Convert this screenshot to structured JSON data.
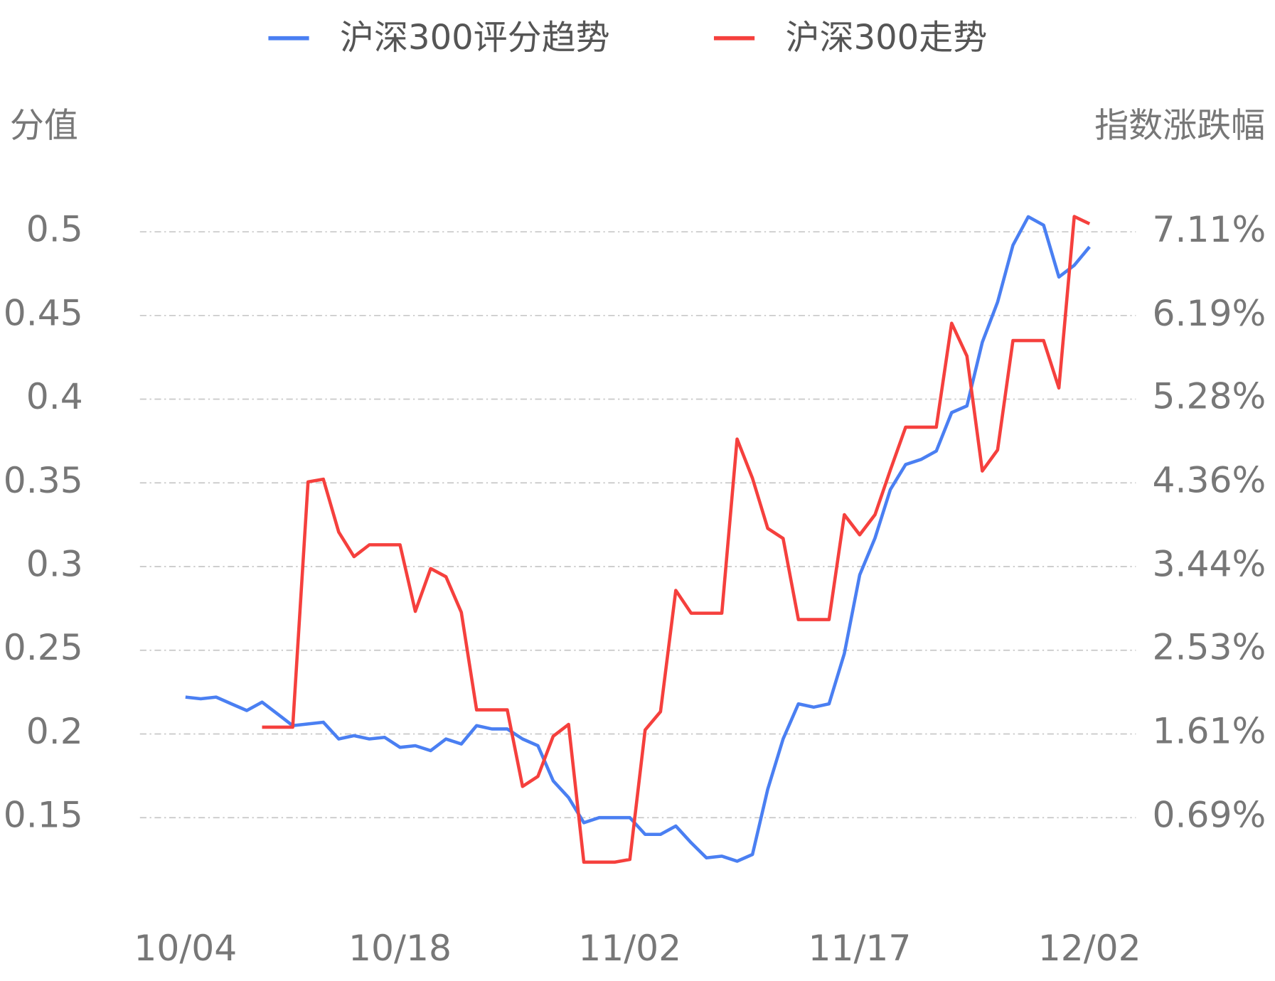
{
  "chart_data": {
    "type": "line",
    "ylabel": "分值",
    "y2label": "指数涨跌幅",
    "categories": [
      "10/04",
      null,
      null,
      null,
      null,
      null,
      null,
      null,
      null,
      null,
      null,
      null,
      null,
      null,
      "10/18",
      null,
      null,
      null,
      null,
      null,
      null,
      null,
      null,
      null,
      null,
      null,
      null,
      null,
      null,
      "11/02",
      null,
      null,
      null,
      null,
      null,
      null,
      null,
      null,
      null,
      null,
      null,
      null,
      null,
      null,
      "11/17",
      null,
      null,
      null,
      null,
      null,
      null,
      null,
      null,
      null,
      null,
      null,
      null,
      null,
      null,
      "12/02"
    ],
    "series": [
      {
        "name": "沪深300评分趋势",
        "color": "#4a7ff2",
        "values": [
          0.222,
          0.221,
          0.222,
          0.218,
          0.214,
          0.219,
          0.212,
          0.205,
          0.206,
          0.207,
          0.197,
          0.199,
          0.197,
          0.198,
          0.192,
          0.193,
          0.19,
          0.197,
          0.194,
          0.205,
          0.203,
          0.203,
          0.197,
          0.193,
          0.172,
          0.162,
          0.147,
          0.15,
          0.15,
          0.15,
          0.14,
          0.14,
          0.145,
          0.135,
          0.126,
          0.127,
          0.124,
          0.128,
          0.167,
          0.197,
          0.218,
          0.216,
          0.218,
          0.248,
          0.295,
          0.317,
          0.346,
          0.361,
          0.364,
          0.369,
          0.392,
          0.396,
          0.434,
          0.458,
          0.492,
          0.509,
          0.504,
          0.473,
          0.48,
          0.491
        ]
      },
      {
        "name": "沪深300走势",
        "color": "#f5403d",
        "axis": "y2",
        "values": [
          null,
          null,
          null,
          null,
          null,
          1.68,
          1.68,
          1.68,
          4.37,
          4.4,
          3.82,
          3.55,
          3.68,
          3.68,
          3.68,
          2.95,
          3.42,
          3.33,
          2.94,
          1.87,
          1.87,
          1.87,
          1.03,
          1.14,
          1.58,
          1.71,
          0.2,
          0.2,
          0.2,
          0.23,
          1.65,
          1.85,
          3.18,
          2.93,
          2.93,
          2.93,
          4.84,
          4.41,
          3.86,
          3.75,
          2.86,
          2.86,
          2.86,
          4.01,
          3.79,
          4.01,
          4.5,
          4.97,
          4.97,
          4.97,
          6.11,
          5.75,
          4.49,
          4.72,
          5.92,
          5.92,
          5.92,
          5.4,
          7.28,
          7.2
        ]
      }
    ],
    "ylim": [
      0.1,
      0.52
    ],
    "yticks": [
      0.15,
      0.2,
      0.25,
      0.3,
      0.35,
      0.4,
      0.45,
      0.5
    ],
    "y2lim": [
      -0.23,
      7.48
    ],
    "y2ticks": [
      {
        "value": 0.69,
        "label": "0.69%"
      },
      {
        "value": 1.61,
        "label": "1.61%"
      },
      {
        "value": 2.53,
        "label": "2.53%"
      },
      {
        "value": 3.44,
        "label": "3.44%"
      },
      {
        "value": 4.36,
        "label": "4.36%"
      },
      {
        "value": 5.28,
        "label": "5.28%"
      },
      {
        "value": 6.19,
        "label": "6.19%"
      },
      {
        "value": 7.11,
        "label": "7.11%"
      }
    ],
    "grid": true
  }
}
